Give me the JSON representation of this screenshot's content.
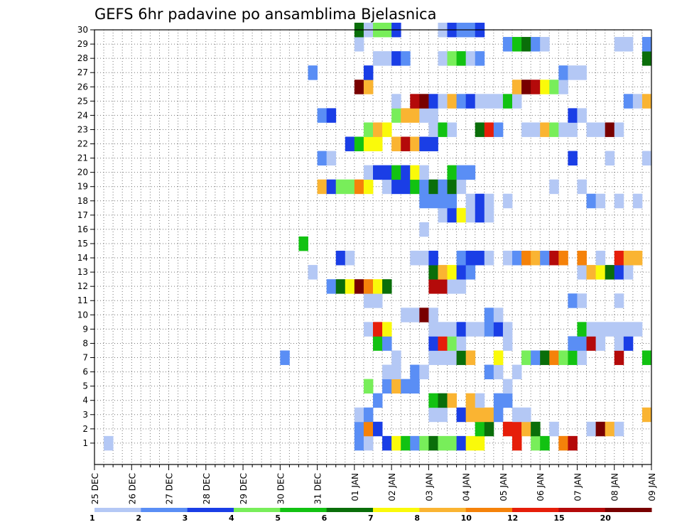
{
  "chart_data": {
    "type": "heatmap",
    "title": "GEFS 6hr padavine po ansamblima Bjelasnica",
    "x_tick_labels": [
      "25 DEC",
      "26 DEC",
      "27 DEC",
      "28 DEC",
      "29 DEC",
      "30 DEC",
      "31 DEC",
      "01 JAN",
      "02 JAN",
      "03 JAN",
      "04 JAN",
      "05 JAN",
      "06 JAN",
      "07 JAN",
      "08 JAN",
      "09 JAN"
    ],
    "y_tick_labels": [
      "1",
      "2",
      "3",
      "4",
      "5",
      "6",
      "7",
      "8",
      "9",
      "10",
      "11",
      "12",
      "13",
      "14",
      "15",
      "16",
      "17",
      "18",
      "19",
      "20",
      "21",
      "22",
      "23",
      "24",
      "25",
      "26",
      "27",
      "28",
      "29",
      "30"
    ],
    "grid": "dotted",
    "color_scale": {
      "labels": [
        "1",
        "2",
        "3",
        "4",
        "5",
        "6",
        "7",
        "8",
        "10",
        "12",
        "15",
        "20"
      ],
      "colors": [
        "#b4c8f5",
        "#5a8ef5",
        "#1a3ee6",
        "#78ee5a",
        "#12c212",
        "#0a6e0a",
        "#fafa0a",
        "#fab432",
        "#f5820a",
        "#e61e0a",
        "#b40a0a",
        "#780000"
      ]
    },
    "x_range_steps": [
      0,
      60
    ],
    "y_range_members": [
      1,
      30
    ],
    "cells": [
      [
        1,
        1,
        0
      ],
      [
        1,
        28,
        1
      ],
      [
        1,
        29,
        0
      ],
      [
        1,
        31,
        2
      ],
      [
        1,
        32,
        6
      ],
      [
        1,
        33,
        4
      ],
      [
        1,
        34,
        1
      ],
      [
        1,
        35,
        3
      ],
      [
        1,
        36,
        5
      ],
      [
        1,
        37,
        3
      ],
      [
        1,
        38,
        3
      ],
      [
        1,
        39,
        2
      ],
      [
        1,
        40,
        6
      ],
      [
        1,
        41,
        6
      ],
      [
        1,
        45,
        9
      ],
      [
        1,
        47,
        3
      ],
      [
        1,
        48,
        4
      ],
      [
        1,
        50,
        8
      ],
      [
        1,
        51,
        10
      ],
      [
        2,
        28,
        1
      ],
      [
        2,
        29,
        8
      ],
      [
        2,
        30,
        2
      ],
      [
        2,
        41,
        4
      ],
      [
        2,
        42,
        5
      ],
      [
        2,
        44,
        9
      ],
      [
        2,
        45,
        9
      ],
      [
        2,
        46,
        7
      ],
      [
        2,
        47,
        5
      ],
      [
        2,
        49,
        0
      ],
      [
        2,
        53,
        0
      ],
      [
        2,
        54,
        11
      ],
      [
        2,
        55,
        7
      ],
      [
        2,
        56,
        0
      ],
      [
        3,
        28,
        0
      ],
      [
        3,
        29,
        1
      ],
      [
        3,
        36,
        0
      ],
      [
        3,
        37,
        0
      ],
      [
        3,
        39,
        2
      ],
      [
        3,
        40,
        7
      ],
      [
        3,
        41,
        7
      ],
      [
        3,
        42,
        7
      ],
      [
        3,
        43,
        1
      ],
      [
        3,
        45,
        0
      ],
      [
        3,
        46,
        0
      ],
      [
        3,
        59,
        7
      ],
      [
        4,
        30,
        1
      ],
      [
        4,
        36,
        4
      ],
      [
        4,
        37,
        5
      ],
      [
        4,
        38,
        7
      ],
      [
        4,
        40,
        7
      ],
      [
        4,
        41,
        0
      ],
      [
        4,
        43,
        1
      ],
      [
        4,
        44,
        1
      ],
      [
        5,
        29,
        3
      ],
      [
        5,
        31,
        1
      ],
      [
        5,
        32,
        7
      ],
      [
        5,
        33,
        1
      ],
      [
        5,
        34,
        1
      ],
      [
        5,
        44,
        0
      ],
      [
        6,
        31,
        0
      ],
      [
        6,
        32,
        0
      ],
      [
        6,
        34,
        1
      ],
      [
        6,
        35,
        0
      ],
      [
        6,
        42,
        1
      ],
      [
        6,
        43,
        0
      ],
      [
        6,
        45,
        0
      ],
      [
        7,
        20,
        1
      ],
      [
        7,
        32,
        0
      ],
      [
        7,
        36,
        0
      ],
      [
        7,
        37,
        0
      ],
      [
        7,
        38,
        0
      ],
      [
        7,
        39,
        5
      ],
      [
        7,
        40,
        7
      ],
      [
        7,
        43,
        6
      ],
      [
        7,
        46,
        3
      ],
      [
        7,
        47,
        1
      ],
      [
        7,
        48,
        5
      ],
      [
        7,
        49,
        8
      ],
      [
        7,
        50,
        3
      ],
      [
        7,
        51,
        4
      ],
      [
        7,
        52,
        0
      ],
      [
        7,
        56,
        10
      ],
      [
        7,
        59,
        4
      ],
      [
        8,
        30,
        4
      ],
      [
        8,
        31,
        1
      ],
      [
        8,
        36,
        2
      ],
      [
        8,
        37,
        9
      ],
      [
        8,
        38,
        3
      ],
      [
        8,
        39,
        0
      ],
      [
        8,
        44,
        0
      ],
      [
        8,
        51,
        1
      ],
      [
        8,
        52,
        1
      ],
      [
        8,
        53,
        10
      ],
      [
        8,
        54,
        0
      ],
      [
        8,
        56,
        0
      ],
      [
        8,
        57,
        2
      ],
      [
        9,
        29,
        0
      ],
      [
        9,
        30,
        9
      ],
      [
        9,
        31,
        6
      ],
      [
        9,
        36,
        0
      ],
      [
        9,
        37,
        0
      ],
      [
        9,
        38,
        0
      ],
      [
        9,
        39,
        2
      ],
      [
        9,
        40,
        0
      ],
      [
        9,
        41,
        0
      ],
      [
        9,
        42,
        1
      ],
      [
        9,
        43,
        2
      ],
      [
        9,
        44,
        0
      ],
      [
        9,
        52,
        4
      ],
      [
        9,
        53,
        0
      ],
      [
        9,
        54,
        0
      ],
      [
        9,
        55,
        0
      ],
      [
        9,
        56,
        0
      ],
      [
        9,
        57,
        0
      ],
      [
        9,
        58,
        0
      ],
      [
        10,
        33,
        0
      ],
      [
        10,
        34,
        0
      ],
      [
        10,
        35,
        11
      ],
      [
        10,
        36,
        0
      ],
      [
        10,
        42,
        1
      ],
      [
        10,
        43,
        0
      ],
      [
        11,
        29,
        0
      ],
      [
        11,
        30,
        0
      ],
      [
        11,
        51,
        1
      ],
      [
        11,
        52,
        0
      ],
      [
        11,
        56,
        0
      ],
      [
        12,
        25,
        1
      ],
      [
        12,
        26,
        5
      ],
      [
        12,
        27,
        6
      ],
      [
        12,
        28,
        11
      ],
      [
        12,
        29,
        8
      ],
      [
        12,
        30,
        6
      ],
      [
        12,
        31,
        5
      ],
      [
        12,
        36,
        10
      ],
      [
        12,
        37,
        10
      ],
      [
        12,
        38,
        0
      ],
      [
        12,
        39,
        0
      ],
      [
        13,
        23,
        0
      ],
      [
        13,
        36,
        5
      ],
      [
        13,
        37,
        7
      ],
      [
        13,
        38,
        6
      ],
      [
        13,
        39,
        2
      ],
      [
        13,
        40,
        1
      ],
      [
        13,
        52,
        0
      ],
      [
        13,
        53,
        7
      ],
      [
        13,
        54,
        6
      ],
      [
        13,
        55,
        5
      ],
      [
        13,
        56,
        2
      ],
      [
        13,
        57,
        0
      ],
      [
        14,
        26,
        2
      ],
      [
        14,
        27,
        0
      ],
      [
        14,
        34,
        0
      ],
      [
        14,
        35,
        0
      ],
      [
        14,
        36,
        2
      ],
      [
        14,
        39,
        1
      ],
      [
        14,
        40,
        2
      ],
      [
        14,
        41,
        2
      ],
      [
        14,
        42,
        0
      ],
      [
        14,
        44,
        0
      ],
      [
        14,
        45,
        1
      ],
      [
        14,
        46,
        8
      ],
      [
        14,
        47,
        7
      ],
      [
        14,
        48,
        1
      ],
      [
        14,
        49,
        10
      ],
      [
        14,
        50,
        8
      ],
      [
        14,
        52,
        8
      ],
      [
        14,
        54,
        0
      ],
      [
        14,
        56,
        9
      ],
      [
        14,
        57,
        7
      ],
      [
        14,
        58,
        7
      ],
      [
        15,
        22,
        4
      ],
      [
        16,
        35,
        0
      ],
      [
        17,
        37,
        0
      ],
      [
        17,
        38,
        2
      ],
      [
        17,
        39,
        6
      ],
      [
        17,
        40,
        0
      ],
      [
        17,
        41,
        2
      ],
      [
        17,
        42,
        0
      ],
      [
        18,
        35,
        1
      ],
      [
        18,
        36,
        1
      ],
      [
        18,
        37,
        1
      ],
      [
        18,
        38,
        1
      ],
      [
        18,
        40,
        0
      ],
      [
        18,
        41,
        2
      ],
      [
        18,
        42,
        0
      ],
      [
        18,
        44,
        0
      ],
      [
        18,
        53,
        1
      ],
      [
        18,
        54,
        0
      ],
      [
        18,
        56,
        0
      ],
      [
        18,
        58,
        0
      ],
      [
        19,
        24,
        7
      ],
      [
        19,
        25,
        2
      ],
      [
        19,
        26,
        3
      ],
      [
        19,
        27,
        3
      ],
      [
        19,
        28,
        8
      ],
      [
        19,
        29,
        6
      ],
      [
        19,
        31,
        0
      ],
      [
        19,
        32,
        2
      ],
      [
        19,
        33,
        2
      ],
      [
        19,
        34,
        4
      ],
      [
        19,
        35,
        1
      ],
      [
        19,
        36,
        5
      ],
      [
        19,
        37,
        1
      ],
      [
        19,
        38,
        5
      ],
      [
        19,
        39,
        0
      ],
      [
        19,
        49,
        0
      ],
      [
        19,
        52,
        0
      ],
      [
        20,
        29,
        0
      ],
      [
        20,
        30,
        2
      ],
      [
        20,
        31,
        2
      ],
      [
        20,
        32,
        4
      ],
      [
        20,
        33,
        2
      ],
      [
        20,
        34,
        6
      ],
      [
        20,
        35,
        0
      ],
      [
        20,
        38,
        4
      ],
      [
        20,
        39,
        1
      ],
      [
        20,
        40,
        1
      ],
      [
        21,
        24,
        1
      ],
      [
        21,
        25,
        0
      ],
      [
        21,
        51,
        2
      ],
      [
        21,
        55,
        0
      ],
      [
        21,
        59,
        0
      ],
      [
        22,
        27,
        2
      ],
      [
        22,
        28,
        4
      ],
      [
        22,
        29,
        6
      ],
      [
        22,
        30,
        6
      ],
      [
        22,
        32,
        7
      ],
      [
        22,
        33,
        10
      ],
      [
        22,
        34,
        7
      ],
      [
        22,
        35,
        2
      ],
      [
        22,
        36,
        2
      ],
      [
        23,
        29,
        3
      ],
      [
        23,
        30,
        7
      ],
      [
        23,
        31,
        6
      ],
      [
        23,
        36,
        0
      ],
      [
        23,
        37,
        4
      ],
      [
        23,
        38,
        0
      ],
      [
        23,
        41,
        5
      ],
      [
        23,
        42,
        9
      ],
      [
        23,
        43,
        1
      ],
      [
        23,
        46,
        0
      ],
      [
        23,
        47,
        0
      ],
      [
        23,
        48,
        7
      ],
      [
        23,
        49,
        3
      ],
      [
        23,
        50,
        0
      ],
      [
        23,
        51,
        0
      ],
      [
        23,
        53,
        0
      ],
      [
        23,
        54,
        0
      ],
      [
        23,
        55,
        11
      ],
      [
        23,
        56,
        0
      ],
      [
        24,
        24,
        1
      ],
      [
        24,
        25,
        2
      ],
      [
        24,
        32,
        3
      ],
      [
        24,
        33,
        7
      ],
      [
        24,
        34,
        7
      ],
      [
        24,
        35,
        0
      ],
      [
        24,
        36,
        0
      ],
      [
        24,
        51,
        2
      ],
      [
        24,
        52,
        0
      ],
      [
        25,
        32,
        0
      ],
      [
        25,
        34,
        10
      ],
      [
        25,
        35,
        11
      ],
      [
        25,
        36,
        2
      ],
      [
        25,
        37,
        0
      ],
      [
        25,
        38,
        7
      ],
      [
        25,
        39,
        1
      ],
      [
        25,
        40,
        2
      ],
      [
        25,
        41,
        0
      ],
      [
        25,
        42,
        0
      ],
      [
        25,
        43,
        0
      ],
      [
        25,
        44,
        4
      ],
      [
        25,
        45,
        0
      ],
      [
        25,
        57,
        1
      ],
      [
        25,
        58,
        0
      ],
      [
        25,
        59,
        7
      ],
      [
        26,
        28,
        11
      ],
      [
        26,
        29,
        7
      ],
      [
        26,
        45,
        7
      ],
      [
        26,
        46,
        11
      ],
      [
        26,
        47,
        10
      ],
      [
        26,
        48,
        6
      ],
      [
        26,
        49,
        3
      ],
      [
        26,
        50,
        0
      ],
      [
        27,
        23,
        1
      ],
      [
        27,
        29,
        2
      ],
      [
        27,
        50,
        1
      ],
      [
        27,
        51,
        0
      ],
      [
        27,
        52,
        0
      ],
      [
        28,
        30,
        0
      ],
      [
        28,
        31,
        0
      ],
      [
        28,
        32,
        2
      ],
      [
        28,
        33,
        1
      ],
      [
        28,
        37,
        0
      ],
      [
        28,
        38,
        3
      ],
      [
        28,
        39,
        4
      ],
      [
        28,
        40,
        0
      ],
      [
        28,
        41,
        1
      ],
      [
        28,
        59,
        5
      ],
      [
        29,
        28,
        0
      ],
      [
        29,
        44,
        1
      ],
      [
        29,
        45,
        4
      ],
      [
        29,
        46,
        5
      ],
      [
        29,
        47,
        1
      ],
      [
        29,
        48,
        0
      ],
      [
        29,
        56,
        0
      ],
      [
        29,
        57,
        0
      ],
      [
        29,
        59,
        1
      ],
      [
        30,
        28,
        5
      ],
      [
        30,
        29,
        0
      ],
      [
        30,
        30,
        3
      ],
      [
        30,
        31,
        3
      ],
      [
        30,
        32,
        2
      ],
      [
        30,
        37,
        0
      ],
      [
        30,
        38,
        2
      ],
      [
        30,
        39,
        1
      ],
      [
        30,
        40,
        1
      ],
      [
        30,
        41,
        2
      ]
    ]
  }
}
